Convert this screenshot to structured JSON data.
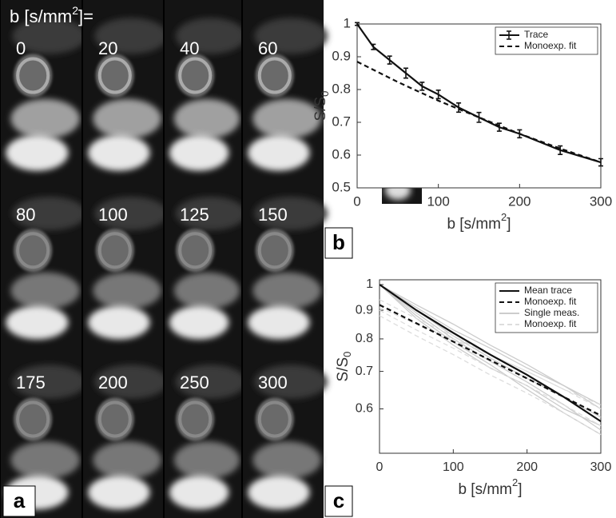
{
  "image_panel": {
    "heading": {
      "pre": "b [s/mm",
      "sup": "2",
      "post": "]="
    },
    "b_values": [
      0,
      20,
      40,
      60,
      80,
      100,
      125,
      150,
      175,
      200,
      250,
      300
    ],
    "panel_label": "a"
  },
  "chart_data": [
    {
      "type": "line",
      "panel_label": "b",
      "xlabel": {
        "pre": "b [s/mm",
        "sup": "2",
        "post": "]"
      },
      "ylabel": {
        "pre": "S/S",
        "sub": "0"
      },
      "xlim": [
        0,
        300
      ],
      "ylim": [
        0.5,
        1
      ],
      "xticks": [
        0,
        100,
        200,
        300
      ],
      "yticks": [
        0.5,
        0.6,
        0.7,
        0.8,
        0.9,
        1
      ],
      "legend": "upper right",
      "series": [
        {
          "name": "Trace",
          "color": "#111111",
          "style": "solid",
          "x": [
            0,
            20,
            40,
            60,
            80,
            100,
            125,
            150,
            175,
            200,
            250,
            300
          ],
          "values": [
            1.0,
            0.93,
            0.89,
            0.85,
            0.81,
            0.785,
            0.745,
            0.715,
            0.685,
            0.665,
            0.615,
            0.578
          ],
          "errors": [
            0.004,
            0.008,
            0.012,
            0.015,
            0.012,
            0.013,
            0.014,
            0.015,
            0.012,
            0.012,
            0.013,
            0.011
          ]
        },
        {
          "name": "Monoexp. fit",
          "color": "#111111",
          "style": "dashed",
          "x": [
            0,
            50,
            100,
            150,
            200,
            250,
            300
          ],
          "values": [
            0.885,
            0.823,
            0.766,
            0.715,
            0.665,
            0.62,
            0.578
          ]
        }
      ]
    },
    {
      "type": "line",
      "panel_label": "c",
      "ylog": true,
      "xlabel": {
        "pre": "b [s/mm",
        "sup": "2",
        "post": "]"
      },
      "ylabel": {
        "pre": "S/S",
        "sub": "0"
      },
      "xlim": [
        0,
        300
      ],
      "ylim": [
        0.5,
        1.02
      ],
      "xticks": [
        0,
        100,
        200,
        300
      ],
      "yticks": [
        0.6,
        0.7,
        0.8,
        0.9,
        1
      ],
      "legend": "upper right",
      "x": [
        0,
        50,
        100,
        150,
        200,
        250,
        300
      ],
      "series": [
        {
          "name": "Mean trace",
          "color": "#111111",
          "style": "solid",
          "values": [
            1.0,
            0.9,
            0.82,
            0.75,
            0.69,
            0.63,
            0.57
          ]
        },
        {
          "name": "Monoexp. fit",
          "color": "#111111",
          "style": "dashed",
          "values": [
            0.92,
            0.853,
            0.791,
            0.733,
            0.68,
            0.63,
            0.584
          ]
        },
        {
          "name": "Single meas.",
          "color": "#cccccc",
          "style": "solid",
          "lines": [
            [
              1.0,
              0.92,
              0.85,
              0.78,
              0.72,
              0.66,
              0.61
            ],
            [
              1.0,
              0.89,
              0.8,
              0.73,
              0.67,
              0.61,
              0.55
            ],
            [
              1.0,
              0.91,
              0.83,
              0.77,
              0.71,
              0.66,
              0.6
            ],
            [
              1.0,
              0.88,
              0.79,
              0.72,
              0.65,
              0.59,
              0.54
            ],
            [
              1.0,
              0.9,
              0.81,
              0.74,
              0.68,
              0.63,
              0.58
            ],
            [
              1.0,
              0.87,
              0.78,
              0.71,
              0.66,
              0.6,
              0.56
            ]
          ]
        },
        {
          "name": "Monoexp. fit",
          "color": "#dddddd",
          "style": "dashed",
          "lines": [
            [
              0.94,
              0.87,
              0.81,
              0.75,
              0.7,
              0.65,
              0.61
            ],
            [
              0.9,
              0.83,
              0.77,
              0.71,
              0.66,
              0.61,
              0.56
            ],
            [
              0.91,
              0.85,
              0.8,
              0.75,
              0.7,
              0.65,
              0.6
            ],
            [
              0.88,
              0.81,
              0.75,
              0.69,
              0.64,
              0.59,
              0.54
            ]
          ]
        }
      ]
    }
  ]
}
